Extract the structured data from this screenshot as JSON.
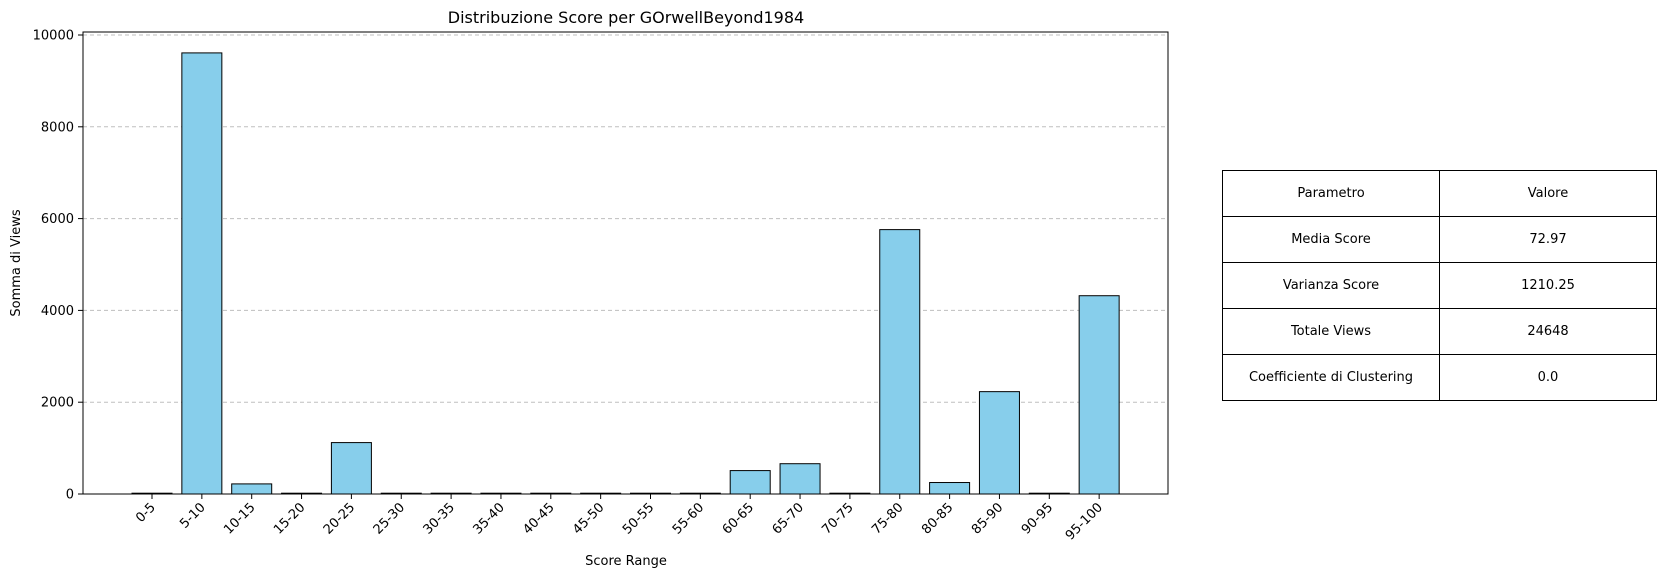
{
  "chart_data": {
    "type": "bar",
    "title": "Distribuzione Score per GOrwellBeyond1984",
    "xlabel": "Score Range",
    "ylabel": "Somma di Views",
    "categories": [
      "0-5",
      "5-10",
      "10-15",
      "15-20",
      "20-25",
      "25-30",
      "30-35",
      "35-40",
      "40-45",
      "45-50",
      "50-55",
      "55-60",
      "60-65",
      "65-70",
      "70-75",
      "75-80",
      "80-85",
      "85-90",
      "90-95",
      "95-100"
    ],
    "values": [
      0,
      9610,
      220,
      0,
      1120,
      0,
      0,
      0,
      0,
      0,
      0,
      0,
      510,
      660,
      0,
      5760,
      250,
      2230,
      0,
      4320
    ],
    "ylim": [
      0,
      10000
    ],
    "yticks": [
      0,
      2000,
      4000,
      6000,
      8000,
      10000
    ],
    "grid": "horizontal dashed",
    "bar_color": "#87ceeb",
    "edge_color": "#000000"
  },
  "table": {
    "header": [
      "Parametro",
      "Valore"
    ],
    "rows": [
      [
        "Media Score",
        "72.97"
      ],
      [
        "Varianza Score",
        "1210.25"
      ],
      [
        "Totale Views",
        "24648"
      ],
      [
        "Coefficiente di Clustering",
        "0.0"
      ]
    ]
  }
}
